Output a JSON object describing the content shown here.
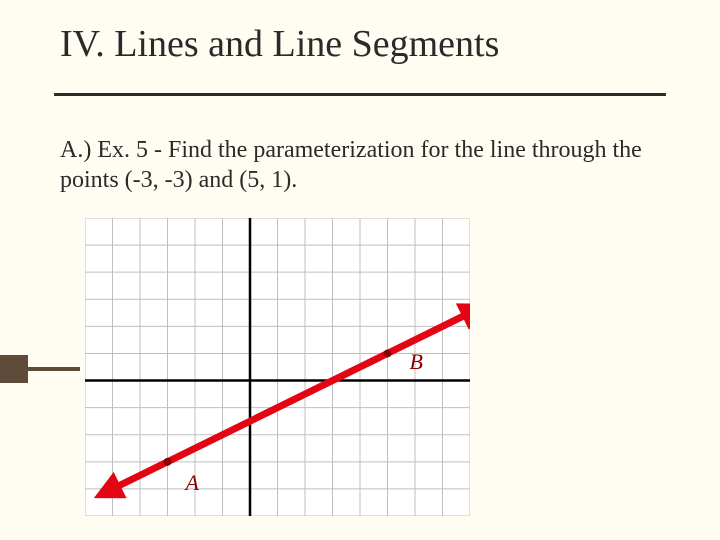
{
  "slide": {
    "background_color": "#fffdf2",
    "accent_color": "#5f4b39",
    "title": "IV. Lines and Line Segments",
    "title_fontsize": 38,
    "title_color": "#2a2a2a",
    "body": "A.) Ex. 5 - Find the parameterization for the line through the points (-3, -3) and (5, 1).",
    "body_fontsize": 24,
    "body_color": "#2a2a2a"
  },
  "graph": {
    "type": "line",
    "xlim": [
      -6,
      8
    ],
    "ylim": [
      -5,
      6
    ],
    "xtick_step": 1,
    "ytick_step": 1,
    "grid_color": "#bfbfbf",
    "grid_width": 1,
    "axis_color": "#000000",
    "axis_width": 2.5,
    "frame_color": "#7a7a7a",
    "frame_width": 1,
    "background_color": "#ffffff",
    "points": {
      "A": {
        "x": -3,
        "y": -3,
        "label": "A",
        "marker_color": "#8b0000",
        "marker_radius": 4
      },
      "B": {
        "x": 5,
        "y": 1,
        "label": "B",
        "marker_color": "#8b0000",
        "marker_radius": 4
      }
    },
    "line": {
      "start": {
        "x": -5.2,
        "y": -4.1
      },
      "end": {
        "x": 8.2,
        "y": 2.6
      },
      "color": "#e30513",
      "width": 7,
      "arrowheads": "both"
    }
  },
  "labels": {
    "A": "A",
    "B": "B",
    "label_color": "#8b0000",
    "label_fontsize": 22
  }
}
